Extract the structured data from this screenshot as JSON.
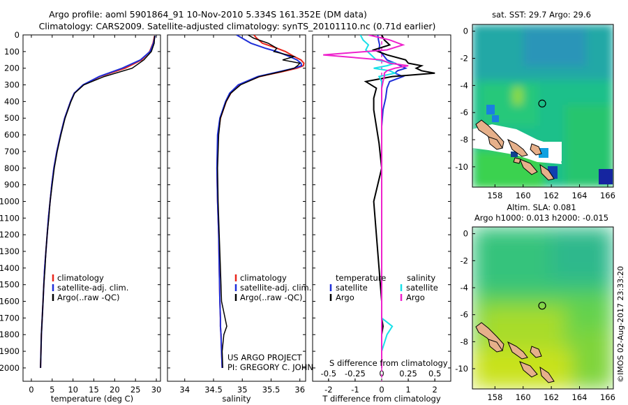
{
  "header": {
    "line1": "Argo profile: aoml 5901864_91 10-Nov-2010 5.334S 161.352E (DM data)",
    "line2": "Climatology: CARS2009. Satellite-adjusted climatology: synTS_20101110.nc (0.71d earlier)"
  },
  "colors": {
    "climatology": "#e8261c",
    "satellite": "#1f2fd8",
    "argo": "#000000",
    "sat_diff": "#19e0e8",
    "argo_s_diff": "#ee22cc",
    "land": "#e6b08a"
  },
  "credits": {
    "project": "US ARGO PROJECT",
    "pi": "PI: GREGORY C. JOHNSON",
    "imos": "©IMOS 02-Aug-2017 23:33:20"
  },
  "chart_data": [
    {
      "id": "temperature",
      "type": "line",
      "xlabel": "temperature (deg C)",
      "xlim": [
        -2,
        31
      ],
      "xticks": [
        0,
        5,
        10,
        15,
        20,
        25,
        30
      ],
      "ylim": [
        0,
        2080
      ],
      "yticks": [
        0,
        100,
        200,
        300,
        400,
        500,
        600,
        700,
        800,
        900,
        1000,
        1100,
        1200,
        1300,
        1400,
        1500,
        1600,
        1700,
        1800,
        1900,
        2000
      ],
      "depth": [
        5,
        50,
        100,
        150,
        200,
        250,
        300,
        350,
        400,
        500,
        600,
        700,
        800,
        900,
        1000,
        1100,
        1200,
        1300,
        1400,
        1500,
        1600,
        1700,
        1800,
        1900,
        2000
      ],
      "series": [
        {
          "name": "climatology",
          "color": "#e8261c",
          "values": [
            29.6,
            29.2,
            28.4,
            26.5,
            22.5,
            16.5,
            12.5,
            10.3,
            9.4,
            8.0,
            7.0,
            6.1,
            5.4,
            4.9,
            4.5,
            4.1,
            3.8,
            3.5,
            3.2,
            3.0,
            2.8,
            2.6,
            2.4,
            2.3,
            2.2
          ]
        },
        {
          "name": "satellite-adj. clim.",
          "color": "#1f2fd8",
          "values": [
            29.7,
            29.3,
            28.5,
            26.2,
            21.8,
            16.3,
            12.4,
            10.3,
            9.4,
            8.0,
            7.0,
            6.1,
            5.4,
            4.9,
            4.5,
            4.1,
            3.8,
            3.5,
            3.2,
            3.0,
            2.8,
            2.6,
            2.4,
            2.3,
            2.2
          ]
        },
        {
          "name": "Argo(..raw -QC)",
          "color": "#000000",
          "values": [
            29.6,
            29.5,
            28.8,
            27.0,
            24.2,
            17.5,
            12.6,
            10.4,
            9.5,
            8.1,
            7.1,
            6.2,
            5.5,
            5.0,
            4.5,
            4.2,
            3.8,
            3.5,
            3.3,
            3.0,
            2.8,
            2.6,
            2.4,
            2.3,
            2.2
          ]
        }
      ],
      "legend": [
        "climatology",
        "satellite-adj. clim.",
        "Argo(..raw -QC)"
      ]
    },
    {
      "id": "salinity",
      "type": "line",
      "xlabel": "salinity",
      "xlim": [
        33.7,
        36.1
      ],
      "xticks": [
        34,
        34.5,
        35,
        35.5,
        36
      ],
      "xticklabels": [
        "34",
        "34.5",
        "35",
        "35.5",
        "36"
      ],
      "ylim": [
        0,
        2080
      ],
      "depth": [
        0,
        20,
        50,
        80,
        100,
        130,
        150,
        170,
        185,
        200,
        220,
        250,
        300,
        350,
        400,
        500,
        600,
        800,
        1000,
        1200,
        1400,
        1600,
        1700,
        1750,
        1800,
        1900,
        2000
      ],
      "series": [
        {
          "name": "climatology",
          "color": "#e8261c",
          "values": [
            35.2,
            35.25,
            35.35,
            35.6,
            35.75,
            35.9,
            36.02,
            36.07,
            36.06,
            35.95,
            35.7,
            35.3,
            34.95,
            34.8,
            34.72,
            34.62,
            34.58,
            34.56,
            34.57,
            34.59,
            34.6,
            34.61,
            34.62,
            34.62,
            34.63,
            34.64,
            34.65
          ]
        },
        {
          "name": "satellite-adj. clim.",
          "color": "#1f2fd8",
          "values": [
            34.9,
            35.0,
            35.15,
            35.4,
            35.6,
            35.82,
            35.95,
            36.02,
            36.03,
            35.9,
            35.65,
            35.27,
            34.93,
            34.78,
            34.71,
            34.61,
            34.57,
            34.56,
            34.57,
            34.59,
            34.6,
            34.61,
            34.62,
            34.62,
            34.63,
            34.64,
            34.65
          ]
        },
        {
          "name": "Argo(..raw -QC)",
          "color": "#000000",
          "values": [
            35.1,
            35.2,
            35.45,
            35.6,
            35.55,
            35.9,
            35.7,
            36.0,
            35.96,
            35.9,
            35.68,
            35.3,
            34.97,
            34.8,
            34.72,
            34.62,
            34.59,
            34.57,
            34.58,
            34.6,
            34.62,
            34.64,
            34.7,
            34.73,
            34.68,
            34.65,
            34.66
          ]
        }
      ],
      "legend": [
        "climatology",
        "satellite-adj. clim.",
        "Argo(..raw -QC)"
      ]
    },
    {
      "id": "differences",
      "type": "line",
      "xlabel": "T difference from climatology",
      "x2label": "S difference from climatology",
      "xlim": [
        -2.6,
        2.6
      ],
      "xticks": [
        -2,
        -1,
        0,
        1,
        2
      ],
      "x2ticks": [
        -0.5,
        -0.25,
        0,
        0.25,
        0.5
      ],
      "x2ticklabels": [
        "-0.5",
        "-0.25",
        "0",
        "0.25",
        "0.5"
      ],
      "s_scale": 4,
      "ylim": [
        0,
        2080
      ],
      "depth": [
        0,
        30,
        60,
        90,
        120,
        150,
        170,
        185,
        200,
        215,
        230,
        250,
        280,
        320,
        380,
        450,
        550,
        650,
        800,
        1000,
        1200,
        1400,
        1600,
        1700,
        1750,
        1800,
        1900,
        2000
      ],
      "series": [
        {
          "name": "temperature satellite",
          "color": "#1f2fd8",
          "values": [
            -0.15,
            -0.12,
            -0.08,
            -0.1,
            0.05,
            0.2,
            0.5,
            0.7,
            0.9,
            0.6,
            0.5,
            0.8,
            0.3,
            0.2,
            0.15,
            0.05,
            0.0,
            0.0,
            0.0,
            0.0,
            0.0,
            0.0,
            0.0,
            0.0,
            0.0,
            0.0,
            0.0,
            0.0
          ]
        },
        {
          "name": "temperature Argo",
          "color": "#000000",
          "values": [
            0.0,
            0.1,
            0.3,
            -0.3,
            0.2,
            0.9,
            1.0,
            1.5,
            1.3,
            1.5,
            2.0,
            0.4,
            -0.6,
            -0.2,
            -0.3,
            -0.3,
            -0.2,
            -0.1,
            0.0,
            -0.3,
            -0.2,
            -0.1,
            0.0,
            0.0,
            0.05,
            0.0,
            0.0,
            0.0
          ]
        },
        {
          "name": "salinity satellite",
          "color": "#19e0e8",
          "values": [
            -0.8,
            -0.7,
            -0.5,
            -0.6,
            -0.4,
            -0.2,
            0.5,
            0.2,
            -0.3,
            0.3,
            0.5,
            -0.1,
            0.0,
            0.0,
            0.0,
            0.0,
            0.0,
            0.0,
            0.0,
            0.0,
            0.0,
            0.0,
            0.0,
            0.0,
            0.4,
            0.2,
            0.0,
            0.0
          ]
        },
        {
          "name": "salinity Argo",
          "color": "#ee22cc",
          "values": [
            -0.5,
            0.3,
            0.8,
            0.2,
            -2.2,
            0.0,
            0.3,
            1.0,
            0.5,
            0.2,
            0.1,
            0.1,
            0.05,
            0.0,
            0.0,
            0.0,
            0.0,
            0.0,
            0.0,
            0.0,
            0.0,
            0.0,
            0.0,
            0.0,
            0.0,
            0.0,
            0.0,
            0.0
          ]
        }
      ],
      "legend_title_left": "temperature",
      "legend_title_right": "salinity",
      "legend": [
        "satellite",
        "Argo",
        "satellite",
        "Argo"
      ]
    },
    {
      "id": "sst_map",
      "type": "heatmap",
      "title": "sat. SST: 29.7 Argo: 29.6",
      "xlim": [
        156.4,
        166.4
      ],
      "ylim": [
        -11.5,
        0.5
      ],
      "xticks": [
        158,
        160,
        162,
        164,
        166
      ],
      "yticks": [
        0,
        -2,
        -4,
        -6,
        -8,
        -10
      ],
      "marker": {
        "lon": 161.352,
        "lat": -5.334
      }
    },
    {
      "id": "sla_map",
      "type": "heatmap",
      "title": "Altim. SLA: 0.081",
      "subtitle": "Argo h1000: 0.013 h2000: -0.015",
      "xlim": [
        156.4,
        166.4
      ],
      "ylim": [
        -11.5,
        0.5
      ],
      "xticks": [
        158,
        160,
        162,
        164,
        166
      ],
      "yticks": [
        0,
        -2,
        -4,
        -6,
        -8,
        -10
      ],
      "marker": {
        "lon": 161.352,
        "lat": -5.334
      }
    }
  ]
}
